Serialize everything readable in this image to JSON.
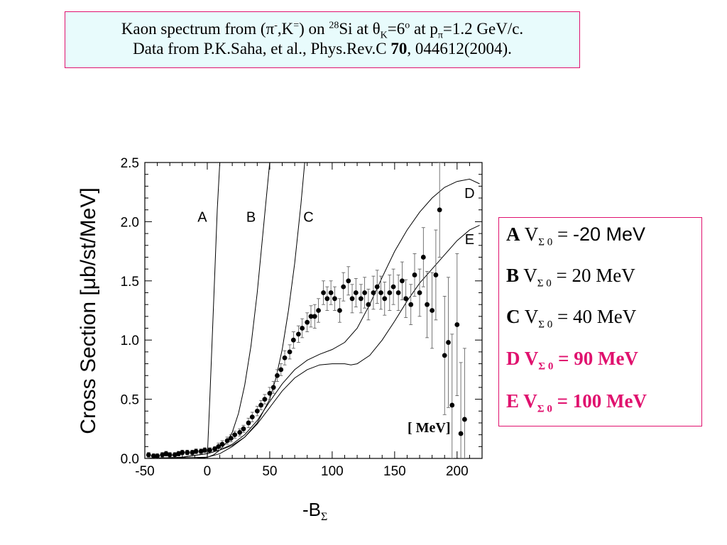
{
  "title": {
    "line1_a": "Kaon spectrum from (",
    "pi": "π",
    "pi_sup": "-",
    "line1_b": ",K",
    "k_sup": "=",
    "line1_c": ") on ",
    "mass_sup": "28",
    "line1_d": "Si at ",
    "theta": "θ",
    "theta_sub": "K",
    "line1_e": "=6",
    "deg_sup": "o",
    "line1_f": " at p",
    "p_sub": "π",
    "line1_g": "=1.2 GeV/c.",
    "line2_a": "Data from P.K.Saha, et al., Phys.Rev.C ",
    "line2_vol": "70",
    "line2_b": ", 044612(2004)."
  },
  "legend": [
    {
      "letter": "A",
      "v": "V",
      "sub": "Σ 0",
      "eq": " = ",
      "value": "-20 MeV",
      "highlight": false
    },
    {
      "letter": "B",
      "v": "V",
      "sub": "Σ 0",
      "eq": "  =  ",
      "value": "20 MeV",
      "highlight": false
    },
    {
      "letter": "C",
      "v": "V",
      "sub": "Σ 0",
      "eq": " =  ",
      "value": "40 MeV",
      "highlight": false
    },
    {
      "letter": "D",
      "v": "V",
      "sub": "Σ 0",
      "eq": " =  ",
      "value": "90 MeV",
      "highlight": true
    },
    {
      "letter": "E",
      "v": "V",
      "sub": "Σ 0",
      "eq": " = ",
      "value": "100 MeV",
      "highlight": true
    }
  ],
  "colors": {
    "accent": "#e0116e",
    "title_bg": "#e8fbfc"
  },
  "chart_data": {
    "type": "scatter",
    "ylabel": "Cross Section [μb/st/MeV]",
    "xlabel": "-B",
    "xlabel_sub": "Σ",
    "units_note": "[  MeV]",
    "xlim": [
      -50,
      220
    ],
    "ylim": [
      0,
      2.5
    ],
    "xticks": [
      -50,
      0,
      50,
      100,
      150,
      200
    ],
    "xtick_labels": [
      "-50",
      "0",
      "50",
      "100",
      "150",
      "200"
    ],
    "yticks": [
      0,
      0.5,
      1.0,
      1.5,
      2.0,
      2.5
    ],
    "ytick_labels": [
      "0.0",
      "0.5",
      "1.0",
      "1.5",
      "2.0",
      "2.5"
    ],
    "curve_labels": [
      {
        "text": "A",
        "x": -4,
        "y": 2.0
      },
      {
        "text": "B",
        "x": 35,
        "y": 2.0
      },
      {
        "text": "C",
        "x": 81,
        "y": 2.0
      },
      {
        "text": "D",
        "x": 210,
        "y": 2.2
      },
      {
        "text": "E",
        "x": 210,
        "y": 1.81
      }
    ],
    "series": [
      {
        "name": "A",
        "style": "line",
        "x": [
          -48,
          -20,
          -5,
          0,
          2,
          5,
          8,
          10
        ],
        "y": [
          0.0,
          0.0,
          0.0,
          0.01,
          0.5,
          1.3,
          2.1,
          2.5
        ]
      },
      {
        "name": "B",
        "style": "line",
        "x": [
          -48,
          -10,
          0,
          5,
          10,
          15,
          20,
          25,
          30,
          35,
          40,
          45,
          50
        ],
        "y": [
          0.0,
          0.0,
          0.01,
          0.03,
          0.07,
          0.13,
          0.22,
          0.38,
          0.62,
          0.95,
          1.4,
          1.95,
          2.5
        ]
      },
      {
        "name": "C",
        "style": "line",
        "x": [
          -48,
          0,
          10,
          20,
          30,
          40,
          50,
          55,
          60,
          65,
          70,
          75,
          78
        ],
        "y": [
          0.0,
          0.01,
          0.04,
          0.1,
          0.18,
          0.3,
          0.5,
          0.68,
          0.92,
          1.25,
          1.65,
          2.15,
          2.5
        ]
      },
      {
        "name": "D",
        "style": "line",
        "x": [
          -48,
          -20,
          0,
          10,
          20,
          30,
          40,
          50,
          60,
          70,
          80,
          90,
          100,
          110,
          120,
          130,
          140,
          150,
          160,
          170,
          180,
          190,
          200,
          210,
          218
        ],
        "y": [
          0.0,
          0.01,
          0.04,
          0.07,
          0.12,
          0.2,
          0.32,
          0.48,
          0.63,
          0.75,
          0.83,
          0.88,
          0.92,
          0.98,
          1.1,
          1.3,
          1.53,
          1.75,
          1.93,
          2.08,
          2.2,
          2.29,
          2.34,
          2.36,
          2.32
        ]
      },
      {
        "name": "E",
        "style": "line",
        "x": [
          -48,
          -20,
          0,
          10,
          20,
          30,
          40,
          50,
          60,
          70,
          80,
          90,
          100,
          110,
          115,
          120,
          130,
          140,
          150,
          160,
          170,
          180,
          190,
          200,
          210,
          218
        ],
        "y": [
          0.0,
          0.01,
          0.04,
          0.07,
          0.11,
          0.18,
          0.29,
          0.43,
          0.57,
          0.68,
          0.75,
          0.79,
          0.8,
          0.8,
          0.79,
          0.8,
          0.87,
          1.0,
          1.16,
          1.33,
          1.48,
          1.6,
          1.72,
          1.84,
          1.93,
          1.97
        ]
      },
      {
        "name": "data",
        "style": "points",
        "x": [
          -47,
          -43,
          -40,
          -36,
          -33,
          -30,
          -26,
          -23,
          -20,
          -16,
          -12,
          -9,
          -5,
          -2,
          2,
          6,
          9,
          12,
          16,
          19,
          22,
          26,
          29,
          33,
          36,
          40,
          43,
          46,
          50,
          53,
          56,
          59,
          62,
          66,
          69,
          73,
          76,
          80,
          83,
          86,
          89,
          93,
          96,
          99,
          102,
          106,
          109,
          113,
          116,
          119,
          123,
          126,
          129,
          133,
          136,
          139,
          142,
          146,
          149,
          153,
          156,
          159,
          163,
          166,
          170,
          173,
          176,
          180,
          183,
          186,
          190,
          193,
          196,
          200,
          203,
          206
        ],
        "y": [
          0.03,
          0.02,
          0.02,
          0.03,
          0.04,
          0.03,
          0.03,
          0.04,
          0.05,
          0.05,
          0.05,
          0.06,
          0.06,
          0.07,
          0.07,
          0.08,
          0.1,
          0.12,
          0.15,
          0.17,
          0.2,
          0.22,
          0.25,
          0.3,
          0.35,
          0.4,
          0.45,
          0.5,
          0.55,
          0.6,
          0.7,
          0.75,
          0.85,
          0.9,
          1.0,
          1.05,
          1.1,
          1.15,
          1.2,
          1.2,
          1.25,
          1.4,
          1.35,
          1.4,
          1.35,
          1.25,
          1.45,
          1.5,
          1.35,
          1.4,
          1.35,
          1.4,
          1.3,
          1.4,
          1.45,
          1.4,
          1.35,
          1.4,
          1.45,
          1.4,
          1.5,
          1.35,
          1.3,
          1.55,
          1.4,
          1.7,
          1.3,
          1.25,
          1.55,
          2.1,
          0.87,
          0.98,
          0.45,
          1.13,
          0.21,
          0.33
        ],
        "err": [
          0.02,
          0.02,
          0.02,
          0.02,
          0.02,
          0.02,
          0.02,
          0.02,
          0.02,
          0.02,
          0.02,
          0.02,
          0.02,
          0.02,
          0.02,
          0.02,
          0.03,
          0.03,
          0.03,
          0.03,
          0.03,
          0.03,
          0.03,
          0.04,
          0.04,
          0.04,
          0.04,
          0.04,
          0.05,
          0.05,
          0.05,
          0.05,
          0.06,
          0.06,
          0.07,
          0.07,
          0.08,
          0.08,
          0.09,
          0.1,
          0.1,
          0.1,
          0.1,
          0.1,
          0.1,
          0.1,
          0.12,
          0.12,
          0.12,
          0.12,
          0.12,
          0.13,
          0.13,
          0.14,
          0.14,
          0.14,
          0.14,
          0.15,
          0.15,
          0.15,
          0.16,
          0.16,
          0.17,
          0.18,
          0.2,
          0.25,
          0.28,
          0.32,
          0.38,
          0.4,
          0.5,
          0.55,
          0.6,
          0.6,
          0.6,
          0.6
        ]
      }
    ]
  }
}
